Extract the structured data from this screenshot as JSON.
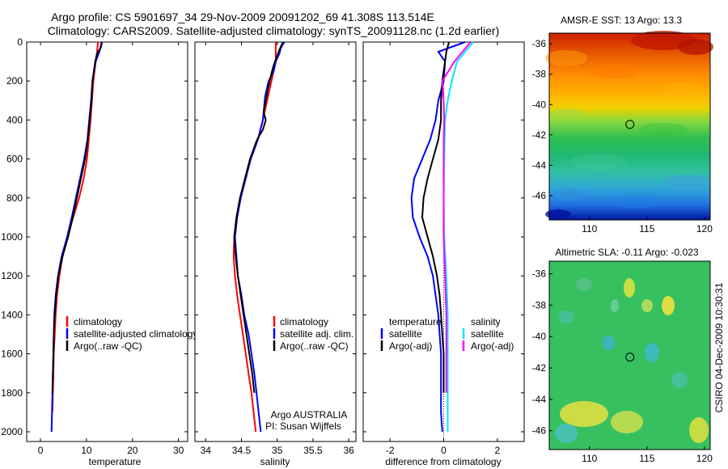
{
  "figure": {
    "title_line1": "Argo profile: CS 5901697_34 29-Nov-2009 20091202_69 41.308S 113.514E",
    "title_line2": "Climatology: CARS2009. Satellite-adjusted climatology: synTS_20091128.nc (1.2d earlier)",
    "credit_org": "Argo AUSTRALIA",
    "credit_pi": "PI: Susan Wijffels",
    "side_label": "CSIRO 04-Dec-2009 10:30:31"
  },
  "colors": {
    "climatology": "#ff0000",
    "satellite": "#0000ff",
    "argo": "#000000",
    "satellite_salinity": "#00e5ff",
    "argo_salinity": "#ff00ff"
  },
  "chart_data": [
    {
      "type": "line",
      "id": "temperature",
      "xlabel": "temperature",
      "ylabel": "",
      "xlim": [
        -3,
        32
      ],
      "ylim": [
        2050,
        0
      ],
      "y_reversed": true,
      "xticks": [
        0,
        10,
        20,
        30
      ],
      "yticks": [
        0,
        200,
        400,
        600,
        800,
        1000,
        1200,
        1400,
        1600,
        1800,
        2000
      ],
      "legend": {
        "position": "lower-right",
        "entries": [
          "climatology",
          "satellite-adjusted climatology",
          "Argo(..raw -QC)"
        ]
      },
      "series": [
        {
          "name": "climatology",
          "color": "red",
          "points": [
            [
              12.5,
              0
            ],
            [
              12.3,
              50
            ],
            [
              12,
              100
            ],
            [
              11.5,
              200
            ],
            [
              11.2,
              300
            ],
            [
              10.9,
              400
            ],
            [
              10.5,
              500
            ],
            [
              10.1,
              600
            ],
            [
              9.4,
              700
            ],
            [
              8.4,
              800
            ],
            [
              7.1,
              900
            ],
            [
              5.9,
              1000
            ],
            [
              4.8,
              1100
            ],
            [
              4.1,
              1200
            ],
            [
              3.6,
              1300
            ],
            [
              3.3,
              1400
            ],
            [
              3.1,
              1500
            ],
            [
              2.9,
              1600
            ],
            [
              2.8,
              1700
            ],
            [
              2.7,
              1800
            ],
            [
              2.6,
              1900
            ]
          ]
        },
        {
          "name": "satellite-adjusted climatology",
          "color": "blue",
          "points": [
            [
              13.3,
              0
            ],
            [
              12.8,
              50
            ],
            [
              12,
              100
            ],
            [
              11.3,
              200
            ],
            [
              11,
              300
            ],
            [
              10.6,
              400
            ],
            [
              10.2,
              500
            ],
            [
              9.5,
              600
            ],
            [
              8.6,
              700
            ],
            [
              7.7,
              800
            ],
            [
              6.8,
              900
            ],
            [
              5.8,
              1000
            ],
            [
              4.6,
              1100
            ],
            [
              3.8,
              1200
            ],
            [
              3.3,
              1300
            ],
            [
              3,
              1400
            ],
            [
              2.9,
              1500
            ],
            [
              2.8,
              1600
            ],
            [
              2.7,
              1700
            ],
            [
              2.6,
              1800
            ],
            [
              2.5,
              1900
            ],
            [
              2.4,
              2000
            ]
          ]
        },
        {
          "name": "Argo(..raw -QC)",
          "color": "black",
          "points": [
            [
              13.4,
              0
            ],
            [
              13.1,
              30
            ],
            [
              12.3,
              60
            ],
            [
              11.9,
              100
            ],
            [
              11.3,
              200
            ],
            [
              11.1,
              300
            ],
            [
              10.7,
              400
            ],
            [
              10.3,
              500
            ],
            [
              9.7,
              600
            ],
            [
              8.8,
              700
            ],
            [
              7.9,
              800
            ],
            [
              7,
              900
            ],
            [
              6,
              1000
            ],
            [
              4.8,
              1100
            ],
            [
              3.9,
              1200
            ],
            [
              3.4,
              1300
            ],
            [
              3.1,
              1400
            ],
            [
              2.9,
              1500
            ],
            [
              2.8,
              1600
            ],
            [
              2.7,
              1700
            ],
            [
              2.6,
              1800
            ]
          ]
        }
      ]
    },
    {
      "type": "line",
      "id": "salinity",
      "xlabel": "salinity",
      "ylabel": "",
      "xlim": [
        33.85,
        36.1
      ],
      "ylim": [
        2050,
        0
      ],
      "y_reversed": true,
      "xticks": [
        34,
        34.5,
        35,
        35.5,
        36
      ],
      "xtick_labels": [
        "34",
        "34.5",
        "35",
        "35.5",
        "36"
      ],
      "legend": {
        "position": "lower-right",
        "entries": [
          "climatology",
          "satellite adj. clim.",
          "Argo(..raw -QC)"
        ]
      },
      "series": [
        {
          "name": "climatology",
          "color": "red",
          "points": [
            [
              34.98,
              0
            ],
            [
              34.98,
              100
            ],
            [
              34.92,
              200
            ],
            [
              34.86,
              300
            ],
            [
              34.8,
              400
            ],
            [
              34.73,
              500
            ],
            [
              34.63,
              600
            ],
            [
              34.55,
              700
            ],
            [
              34.49,
              800
            ],
            [
              34.43,
              900
            ],
            [
              34.4,
              1000
            ],
            [
              34.39,
              1100
            ],
            [
              34.41,
              1200
            ],
            [
              34.44,
              1300
            ],
            [
              34.48,
              1400
            ],
            [
              34.52,
              1500
            ],
            [
              34.56,
              1600
            ],
            [
              34.6,
              1700
            ],
            [
              34.64,
              1800
            ],
            [
              34.67,
              1900
            ],
            [
              34.7,
              2000
            ]
          ]
        },
        {
          "name": "satellite adj. clim.",
          "color": "blue",
          "points": [
            [
              35.1,
              0
            ],
            [
              35.05,
              30
            ],
            [
              35.03,
              60
            ],
            [
              34.98,
              100
            ],
            [
              34.95,
              150
            ],
            [
              34.88,
              200
            ],
            [
              34.83,
              280
            ],
            [
              34.8,
              400
            ],
            [
              34.73,
              500
            ],
            [
              34.63,
              600
            ],
            [
              34.56,
              700
            ],
            [
              34.49,
              800
            ],
            [
              34.44,
              900
            ],
            [
              34.41,
              1000
            ],
            [
              34.43,
              1100
            ],
            [
              34.45,
              1200
            ],
            [
              34.5,
              1300
            ],
            [
              34.54,
              1400
            ],
            [
              34.6,
              1500
            ],
            [
              34.64,
              1600
            ],
            [
              34.68,
              1700
            ],
            [
              34.71,
              1800
            ],
            [
              34.74,
              1900
            ],
            [
              34.77,
              2000
            ]
          ]
        },
        {
          "name": "Argo(..raw -QC)",
          "color": "black",
          "points": [
            [
              35.08,
              0
            ],
            [
              35.03,
              40
            ],
            [
              34.99,
              80
            ],
            [
              34.95,
              120
            ],
            [
              34.92,
              160
            ],
            [
              34.87,
              240
            ],
            [
              34.83,
              320
            ],
            [
              34.81,
              360
            ],
            [
              34.84,
              400
            ],
            [
              34.8,
              450
            ],
            [
              34.72,
              500
            ],
            [
              34.62,
              600
            ],
            [
              34.55,
              700
            ],
            [
              34.48,
              800
            ],
            [
              34.43,
              900
            ],
            [
              34.4,
              1000
            ],
            [
              34.42,
              1100
            ],
            [
              34.45,
              1200
            ],
            [
              34.49,
              1300
            ],
            [
              34.53,
              1400
            ],
            [
              34.57,
              1500
            ],
            [
              34.61,
              1600
            ],
            [
              34.65,
              1700
            ],
            [
              34.68,
              1800
            ]
          ]
        }
      ]
    },
    {
      "type": "line",
      "id": "difference",
      "xlabel": "difference from climatology",
      "ylabel": "",
      "xlim": [
        -3,
        3
      ],
      "ylim": [
        2050,
        0
      ],
      "y_reversed": true,
      "xticks": [
        -2,
        0,
        2
      ],
      "legend": {
        "position": "lower-right",
        "columns": [
          {
            "heading": "temperature",
            "entries": [
              "satellite",
              "Argo(-adj)"
            ]
          },
          {
            "heading": "salinity",
            "entries": [
              "satellite",
              "Argo(-adj)"
            ]
          }
        ]
      },
      "reference_line": {
        "x": 0,
        "style": "dotted"
      },
      "series": [
        {
          "name": "temperature satellite",
          "color": "blue",
          "points": [
            [
              0.8,
              0
            ],
            [
              -0.2,
              50
            ],
            [
              0.05,
              100
            ],
            [
              0,
              200
            ],
            [
              -0.2,
              300
            ],
            [
              -0.3,
              400
            ],
            [
              -0.5,
              500
            ],
            [
              -0.8,
              600
            ],
            [
              -1.1,
              700
            ],
            [
              -1.2,
              800
            ],
            [
              -1.15,
              900
            ],
            [
              -0.9,
              1000
            ],
            [
              -0.6,
              1100
            ],
            [
              -0.4,
              1200
            ],
            [
              -0.3,
              1300
            ],
            [
              -0.2,
              1400
            ],
            [
              -0.15,
              1500
            ],
            [
              -0.1,
              1600
            ],
            [
              -0.1,
              1700
            ],
            [
              -0.1,
              1800
            ],
            [
              -0.1,
              1900
            ],
            [
              -0.05,
              2000
            ]
          ]
        },
        {
          "name": "temperature Argo(-adj)",
          "color": "black",
          "points": [
            [
              0.2,
              0
            ],
            [
              0.1,
              50
            ],
            [
              0.05,
              100
            ],
            [
              -0.05,
              200
            ],
            [
              -0.1,
              300
            ],
            [
              -0.1,
              400
            ],
            [
              -0.2,
              500
            ],
            [
              -0.4,
              600
            ],
            [
              -0.6,
              700
            ],
            [
              -0.75,
              800
            ],
            [
              -0.8,
              900
            ],
            [
              -0.6,
              1000
            ],
            [
              -0.4,
              1100
            ],
            [
              -0.25,
              1200
            ],
            [
              -0.15,
              1300
            ],
            [
              -0.1,
              1400
            ],
            [
              -0.05,
              1500
            ],
            [
              0,
              1600
            ],
            [
              0,
              1700
            ],
            [
              0,
              1800
            ]
          ]
        },
        {
          "name": "salinity satellite",
          "color": "cyan",
          "points": [
            [
              1.1,
              0
            ],
            [
              0.8,
              50
            ],
            [
              0.5,
              100
            ],
            [
              0.3,
              200
            ],
            [
              0.15,
              300
            ],
            [
              0.05,
              400
            ],
            [
              0.02,
              600
            ],
            [
              0,
              800
            ],
            [
              0.02,
              1000
            ],
            [
              0.1,
              1200
            ],
            [
              0.15,
              1400
            ],
            [
              0.15,
              1600
            ],
            [
              0.15,
              1800
            ],
            [
              0.15,
              2000
            ]
          ]
        },
        {
          "name": "salinity Argo(-adj)",
          "color": "magenta",
          "points": [
            [
              1,
              0
            ],
            [
              0.4,
              100
            ],
            [
              -0.05,
              200
            ],
            [
              0,
              300
            ],
            [
              0.02,
              400
            ],
            [
              0,
              500
            ],
            [
              0,
              600
            ],
            [
              0,
              800
            ],
            [
              0,
              1000
            ],
            [
              0.05,
              1200
            ],
            [
              0.1,
              1400
            ],
            [
              0.1,
              1600
            ],
            [
              0.1,
              1800
            ]
          ]
        }
      ]
    },
    {
      "type": "heatmap",
      "id": "sst-map",
      "title": "AMSR-E SST: 13 Argo: 13.3",
      "xlim": [
        106.5,
        120.5
      ],
      "ylim": [
        -47.6,
        -35.3
      ],
      "xticks": [
        110,
        115,
        120
      ],
      "yticks": [
        -36,
        -38,
        -40,
        -42,
        -44,
        -46
      ],
      "marker": {
        "lon": 113.514,
        "lat": -41.308,
        "shape": "circle"
      },
      "description": "Warm (orange/red) waters north of about 40S, green band near 41-43S, cyan/blue toward 47S"
    },
    {
      "type": "heatmap",
      "id": "sla-map",
      "title": "Altimetric SLA: -0.11 Argo: -0.023",
      "xlim": [
        106.5,
        120.5
      ],
      "ylim": [
        -47.2,
        -35.2
      ],
      "xticks": [
        110,
        115,
        120
      ],
      "yticks": [
        -36,
        -38,
        -40,
        -42,
        -44,
        -46
      ],
      "marker": {
        "lon": 113.514,
        "lat": -41.308,
        "shape": "circle"
      },
      "description": "Mostly green field with scattered yellow and cyan eddies"
    }
  ]
}
